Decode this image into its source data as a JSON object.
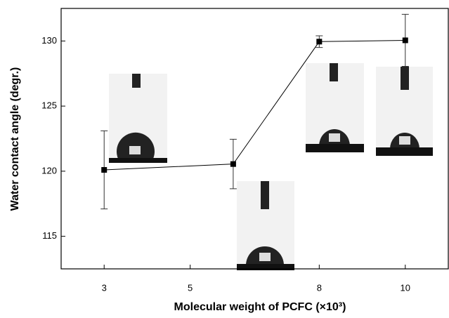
{
  "chart_data": {
    "type": "line",
    "xlabel": "Molecular weight of PCFC (×10³)",
    "ylabel": "Water contact angle (degr.)",
    "x": [
      3,
      6,
      8,
      10
    ],
    "values": [
      120.1,
      120.55,
      129.95,
      130.05
    ],
    "errors": [
      3.0,
      1.9,
      0.45,
      2.0
    ],
    "color": "#000000",
    "xlim": [
      2.0,
      11.0
    ],
    "xticks": [
      3,
      5,
      8,
      10
    ],
    "ylim": [
      112.5,
      132.5
    ],
    "yticks": [
      115,
      120,
      125,
      130
    ]
  }
}
